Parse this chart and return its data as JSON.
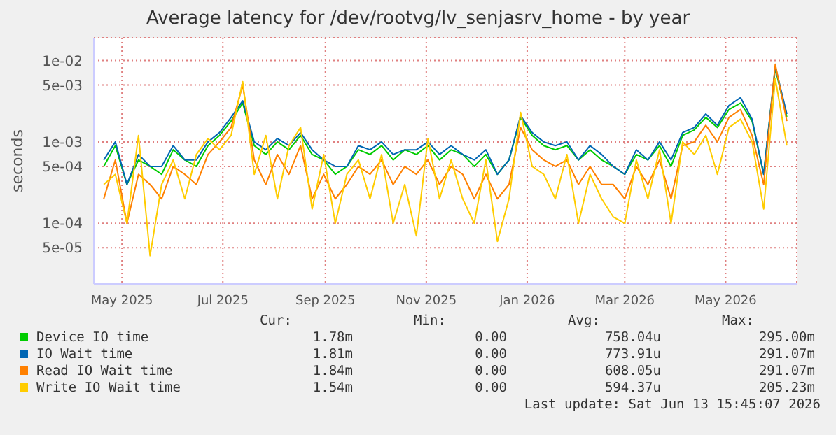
{
  "chart_data": {
    "type": "line",
    "title": "Average latency for /dev/rootvg/lv_senjasrv_home - by year",
    "ylabel": "seconds",
    "log": "y",
    "grid": true,
    "legend": "bottom",
    "marker": "none",
    "line_style": "solid",
    "x": [
      "2025-04-20",
      "2025-04-27",
      "2025-05-04",
      "2025-05-11",
      "2025-05-18",
      "2025-05-25",
      "2025-06-01",
      "2025-06-08",
      "2025-06-15",
      "2025-06-22",
      "2025-06-29",
      "2025-07-06",
      "2025-07-13",
      "2025-07-20",
      "2025-07-27",
      "2025-08-03",
      "2025-08-10",
      "2025-08-17",
      "2025-08-24",
      "2025-08-31",
      "2025-09-07",
      "2025-09-14",
      "2025-09-21",
      "2025-09-28",
      "2025-10-05",
      "2025-10-12",
      "2025-10-19",
      "2025-10-26",
      "2025-11-02",
      "2025-11-09",
      "2025-11-16",
      "2025-11-23",
      "2025-11-30",
      "2025-12-07",
      "2025-12-14",
      "2025-12-21",
      "2025-12-28",
      "2026-01-04",
      "2026-01-11",
      "2026-01-18",
      "2026-01-25",
      "2026-02-01",
      "2026-02-08",
      "2026-02-15",
      "2026-02-22",
      "2026-03-01",
      "2026-03-08",
      "2026-03-15",
      "2026-03-22",
      "2026-03-29",
      "2026-04-05",
      "2026-04-12",
      "2026-04-19",
      "2026-04-26",
      "2026-05-03",
      "2026-05-10",
      "2026-05-17",
      "2026-05-24",
      "2026-05-31",
      "2026-06-07"
    ],
    "xlim": [
      "2025-04-14",
      "2026-06-13"
    ],
    "xticks": [
      {
        "value": "2025-05-01",
        "label": "May 2025"
      },
      {
        "value": "2025-07-01",
        "label": "Jul 2025"
      },
      {
        "value": "2025-09-01",
        "label": "Sep 2025"
      },
      {
        "value": "2025-11-01",
        "label": "Nov 2025"
      },
      {
        "value": "2026-01-01",
        "label": "Jan 2026"
      },
      {
        "value": "2026-03-01",
        "label": "Mar 2026"
      },
      {
        "value": "2026-05-01",
        "label": "May 2026"
      }
    ],
    "ylim": [
      1.8e-05,
      0.019
    ],
    "yticks": [
      {
        "value": 5e-05,
        "label": "5e-05"
      },
      {
        "value": 0.0001,
        "label": "1e-04"
      },
      {
        "value": 0.0005,
        "label": "5e-04"
      },
      {
        "value": 0.001,
        "label": "1e-03"
      },
      {
        "value": 0.005,
        "label": "5e-03"
      },
      {
        "value": 0.01,
        "label": "1e-02"
      }
    ],
    "series": [
      {
        "name": "Device IO time",
        "color": "#00cc00",
        "values": [
          0.0005,
          0.0009,
          0.0003,
          0.0006,
          0.0005,
          0.0004,
          0.0008,
          0.0006,
          0.0005,
          0.0009,
          0.0012,
          0.0018,
          0.003,
          0.0009,
          0.0007,
          0.001,
          0.0008,
          0.0012,
          0.0007,
          0.0006,
          0.0004,
          0.0005,
          0.0008,
          0.0007,
          0.0009,
          0.0006,
          0.0008,
          0.0007,
          0.0009,
          0.0006,
          0.0008,
          0.0007,
          0.0005,
          0.0007,
          0.0004,
          0.0006,
          0.002,
          0.0012,
          0.0009,
          0.0008,
          0.0009,
          0.0006,
          0.0008,
          0.0006,
          0.0005,
          0.0004,
          0.0007,
          0.0006,
          0.0009,
          0.0005,
          0.0012,
          0.0014,
          0.002,
          0.0015,
          0.0025,
          0.003,
          0.0018,
          0.0004,
          0.008,
          0.002
        ]
      },
      {
        "name": "IO Wait time",
        "color": "#0066b3",
        "values": [
          0.0006,
          0.001,
          0.0003,
          0.0007,
          0.0005,
          0.0005,
          0.0009,
          0.0006,
          0.0006,
          0.001,
          0.0013,
          0.002,
          0.0032,
          0.001,
          0.0008,
          0.0011,
          0.0009,
          0.0013,
          0.0008,
          0.0006,
          0.0005,
          0.0005,
          0.0009,
          0.0008,
          0.001,
          0.0007,
          0.0008,
          0.0008,
          0.001,
          0.0007,
          0.0009,
          0.0007,
          0.0006,
          0.0008,
          0.0004,
          0.0006,
          0.0021,
          0.0013,
          0.001,
          0.0009,
          0.001,
          0.0006,
          0.0009,
          0.0007,
          0.0005,
          0.0004,
          0.0008,
          0.0006,
          0.001,
          0.0006,
          0.0013,
          0.0015,
          0.0022,
          0.0016,
          0.0028,
          0.0035,
          0.0019,
          0.0004,
          0.0085,
          0.0022
        ]
      },
      {
        "name": "Read IO Wait time",
        "color": "#ff8000",
        "values": [
          0.0002,
          0.0006,
          0.0001,
          0.0004,
          0.0003,
          0.0002,
          0.0005,
          0.0004,
          0.0003,
          0.0007,
          0.001,
          0.0015,
          0.005,
          0.0006,
          0.0003,
          0.0007,
          0.0004,
          0.0009,
          0.0002,
          0.0004,
          0.0002,
          0.0003,
          0.0005,
          0.0004,
          0.0006,
          0.0003,
          0.0005,
          0.0004,
          0.0006,
          0.0003,
          0.0005,
          0.0004,
          0.0002,
          0.0004,
          0.0002,
          0.0003,
          0.0015,
          0.0008,
          0.0006,
          0.0005,
          0.0006,
          0.0003,
          0.0005,
          0.0003,
          0.0003,
          0.0002,
          0.0005,
          0.0003,
          0.0006,
          0.0002,
          0.0009,
          0.001,
          0.0016,
          0.001,
          0.002,
          0.0025,
          0.0012,
          0.0003,
          0.009,
          0.0018
        ]
      },
      {
        "name": "Write IO Wait time",
        "color": "#ffcc00",
        "values": [
          0.0003,
          0.0004,
          0.0001,
          0.0012,
          4e-05,
          0.0003,
          0.0006,
          0.0002,
          0.0007,
          0.0011,
          0.0008,
          0.0012,
          0.0055,
          0.0004,
          0.0012,
          0.0002,
          0.0009,
          0.0015,
          0.00015,
          0.0007,
          0.0001,
          0.0004,
          0.0006,
          0.0002,
          0.0007,
          0.0001,
          0.0003,
          7e-05,
          0.0011,
          0.0002,
          0.0006,
          0.0002,
          0.0001,
          0.0006,
          6e-05,
          0.0002,
          0.0023,
          0.0005,
          0.0004,
          0.0002,
          0.0007,
          0.0001,
          0.0004,
          0.0002,
          0.00012,
          0.0001,
          0.0006,
          0.0002,
          0.0008,
          0.0001,
          0.001,
          0.0007,
          0.0012,
          0.0004,
          0.0015,
          0.0019,
          0.001,
          0.00015,
          0.006,
          0.0009
        ]
      }
    ],
    "annotations": [
      "Cur:",
      "Min:",
      "Avg:",
      "Max:",
      "1.78m",
      "0.00",
      "758.04u",
      "295.00m",
      "1.81m",
      "0.00",
      "773.91u",
      "291.07m",
      "1.84m",
      "0.00",
      "608.05u",
      "291.07m",
      "1.54m",
      "0.00",
      "594.37u",
      "205.23m",
      "Last update: Sat Jun 13 15:45:07 2026"
    ]
  }
}
